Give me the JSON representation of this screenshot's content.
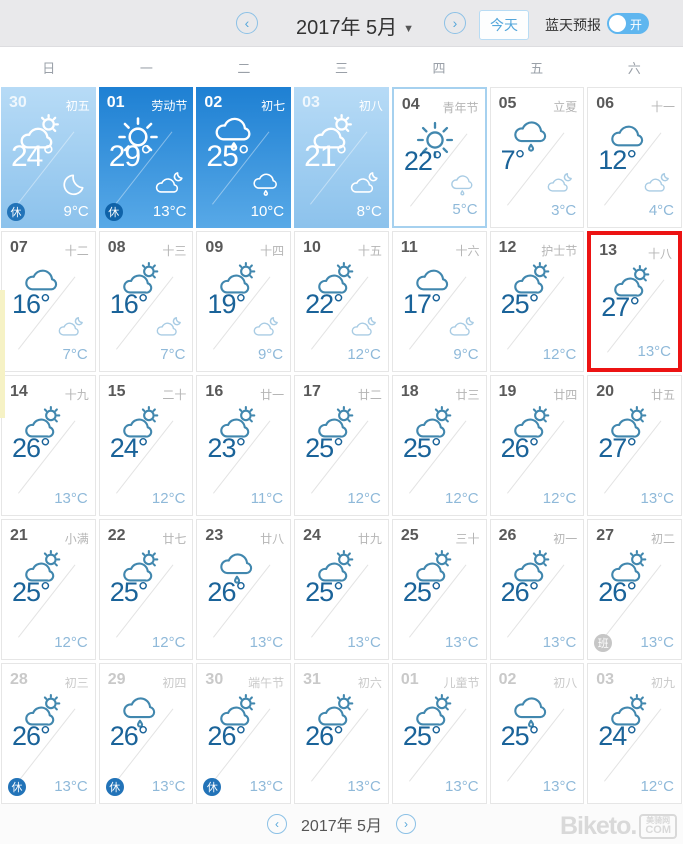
{
  "header": {
    "title": "2017年 5月",
    "caret": "▼",
    "prev": "‹",
    "next": "›",
    "today_button": "今天",
    "bluesky_label": "蓝天预报",
    "toggle_state": "开"
  },
  "weekdays": [
    "日",
    "一",
    "二",
    "三",
    "四",
    "五",
    "六"
  ],
  "cells": [
    {
      "date": "30",
      "lunar": "初五",
      "variant": "past-light",
      "icon": "partly-cloudy",
      "high": "24°",
      "night_icon": "moon",
      "low": "9°C",
      "badge": "休"
    },
    {
      "date": "01",
      "lunar": "劳动节",
      "variant": "past-dark",
      "icon": "sunny",
      "high": "29°",
      "night_icon": "cloud-moon",
      "low": "13°C",
      "badge": "休"
    },
    {
      "date": "02",
      "lunar": "初七",
      "variant": "past-dark",
      "icon": "rain",
      "high": "25°",
      "night_icon": "rain",
      "low": "10°C",
      "badge": null
    },
    {
      "date": "03",
      "lunar": "初八",
      "variant": "past-light",
      "icon": "partly-cloudy",
      "high": "21°",
      "night_icon": "cloud-moon",
      "low": "8°C",
      "badge": null
    },
    {
      "date": "04",
      "lunar": "青年节",
      "variant": "today",
      "icon": "sunny",
      "high": "22°",
      "night_icon": "rain",
      "low": "5°C",
      "badge": null
    },
    {
      "date": "05",
      "lunar": "立夏",
      "variant": "normal",
      "icon": "rain",
      "high": "7°",
      "night_icon": "cloud-moon",
      "low": "3°C",
      "badge": null
    },
    {
      "date": "06",
      "lunar": "十一",
      "variant": "normal",
      "icon": "cloudy",
      "high": "12°",
      "night_icon": "cloud-moon",
      "low": "4°C",
      "badge": null
    },
    {
      "date": "07",
      "lunar": "十二",
      "variant": "normal",
      "icon": "cloudy",
      "high": "16°",
      "night_icon": "cloud-moon",
      "low": "7°C",
      "badge": null
    },
    {
      "date": "08",
      "lunar": "十三",
      "variant": "normal",
      "icon": "partly-cloudy",
      "high": "16°",
      "night_icon": "cloud-moon",
      "low": "7°C",
      "badge": null
    },
    {
      "date": "09",
      "lunar": "十四",
      "variant": "normal",
      "icon": "partly-cloudy",
      "high": "19°",
      "night_icon": "cloud-moon",
      "low": "9°C",
      "badge": null
    },
    {
      "date": "10",
      "lunar": "十五",
      "variant": "normal",
      "icon": "partly-cloudy",
      "high": "22°",
      "night_icon": "cloud-moon",
      "low": "12°C",
      "badge": null
    },
    {
      "date": "11",
      "lunar": "十六",
      "variant": "normal",
      "icon": "cloudy",
      "high": "17°",
      "night_icon": "cloud-moon",
      "low": "9°C",
      "badge": null
    },
    {
      "date": "12",
      "lunar": "护士节",
      "variant": "normal",
      "icon": "partly-cloudy",
      "high": "25°",
      "night_icon": null,
      "low": "12°C",
      "badge": null
    },
    {
      "date": "13",
      "lunar": "十八",
      "variant": "selected",
      "icon": "partly-cloudy",
      "high": "27°",
      "night_icon": null,
      "low": "13°C",
      "badge": null
    },
    {
      "date": "14",
      "lunar": "十九",
      "variant": "normal",
      "icon": "partly-cloudy",
      "high": "26°",
      "night_icon": null,
      "low": "13°C",
      "badge": null
    },
    {
      "date": "15",
      "lunar": "二十",
      "variant": "normal",
      "icon": "partly-cloudy",
      "high": "24°",
      "night_icon": null,
      "low": "12°C",
      "badge": null
    },
    {
      "date": "16",
      "lunar": "廿一",
      "variant": "normal",
      "icon": "partly-cloudy",
      "high": "23°",
      "night_icon": null,
      "low": "11°C",
      "badge": null
    },
    {
      "date": "17",
      "lunar": "廿二",
      "variant": "normal",
      "icon": "partly-cloudy",
      "high": "25°",
      "night_icon": null,
      "low": "12°C",
      "badge": null
    },
    {
      "date": "18",
      "lunar": "廿三",
      "variant": "normal",
      "icon": "partly-cloudy",
      "high": "25°",
      "night_icon": null,
      "low": "12°C",
      "badge": null
    },
    {
      "date": "19",
      "lunar": "廿四",
      "variant": "normal",
      "icon": "partly-cloudy",
      "high": "26°",
      "night_icon": null,
      "low": "12°C",
      "badge": null
    },
    {
      "date": "20",
      "lunar": "廿五",
      "variant": "normal",
      "icon": "partly-cloudy",
      "high": "27°",
      "night_icon": null,
      "low": "13°C",
      "badge": null
    },
    {
      "date": "21",
      "lunar": "小满",
      "variant": "normal",
      "icon": "partly-cloudy",
      "high": "25°",
      "night_icon": null,
      "low": "12°C",
      "badge": null
    },
    {
      "date": "22",
      "lunar": "廿七",
      "variant": "normal",
      "icon": "partly-cloudy",
      "high": "25°",
      "night_icon": null,
      "low": "12°C",
      "badge": null
    },
    {
      "date": "23",
      "lunar": "廿八",
      "variant": "normal",
      "icon": "rain",
      "high": "26°",
      "night_icon": null,
      "low": "13°C",
      "badge": null
    },
    {
      "date": "24",
      "lunar": "廿九",
      "variant": "normal",
      "icon": "partly-cloudy",
      "high": "25°",
      "night_icon": null,
      "low": "13°C",
      "badge": null
    },
    {
      "date": "25",
      "lunar": "三十",
      "variant": "normal",
      "icon": "partly-cloudy",
      "high": "25°",
      "night_icon": null,
      "low": "13°C",
      "badge": null
    },
    {
      "date": "26",
      "lunar": "初一",
      "variant": "normal",
      "icon": "partly-cloudy",
      "high": "26°",
      "night_icon": null,
      "low": "13°C",
      "badge": null
    },
    {
      "date": "27",
      "lunar": "初二",
      "variant": "normal",
      "icon": "partly-cloudy",
      "high": "26°",
      "night_icon": null,
      "low": "13°C",
      "badge": "班"
    },
    {
      "date": "28",
      "lunar": "初三",
      "variant": "dim",
      "icon": "partly-cloudy",
      "high": "26°",
      "night_icon": null,
      "low": "13°C",
      "badge": "休"
    },
    {
      "date": "29",
      "lunar": "初四",
      "variant": "dim",
      "icon": "rain",
      "high": "26°",
      "night_icon": null,
      "low": "13°C",
      "badge": "休"
    },
    {
      "date": "30",
      "lunar": "端午节",
      "variant": "dim",
      "icon": "partly-cloudy",
      "high": "26°",
      "night_icon": null,
      "low": "13°C",
      "badge": "休"
    },
    {
      "date": "31",
      "lunar": "初六",
      "variant": "dim",
      "icon": "partly-cloudy",
      "high": "26°",
      "night_icon": null,
      "low": "13°C",
      "badge": null
    },
    {
      "date": "01",
      "lunar": "儿童节",
      "variant": "dim",
      "icon": "partly-cloudy",
      "high": "25°",
      "night_icon": null,
      "low": "13°C",
      "badge": null
    },
    {
      "date": "02",
      "lunar": "初八",
      "variant": "dim",
      "icon": "rain",
      "high": "25°",
      "night_icon": null,
      "low": "13°C",
      "badge": null
    },
    {
      "date": "03",
      "lunar": "初九",
      "variant": "dim",
      "icon": "partly-cloudy",
      "high": "24°",
      "night_icon": null,
      "low": "12°C",
      "badge": null
    }
  ],
  "footer": {
    "title": "2017年 5月",
    "prev": "‹",
    "next": "›"
  },
  "watermark": {
    "text": "Biketo.",
    "box_top": "美骑网",
    "box_bottom": "COM"
  },
  "colors": {
    "accent_blue": "#4a9fd8",
    "selected_red": "#ec1313",
    "today_border": "#a6d1ef",
    "past_dark_top": "#1e80d3",
    "past_dark_bottom": "#58a9e7",
    "past_light_top": "#b7dbf6",
    "past_light_bottom": "#8cc2ec",
    "toggle_on": "#5fb6ef",
    "high_temp": "#1a6399",
    "low_temp": "#8fb9d9"
  }
}
